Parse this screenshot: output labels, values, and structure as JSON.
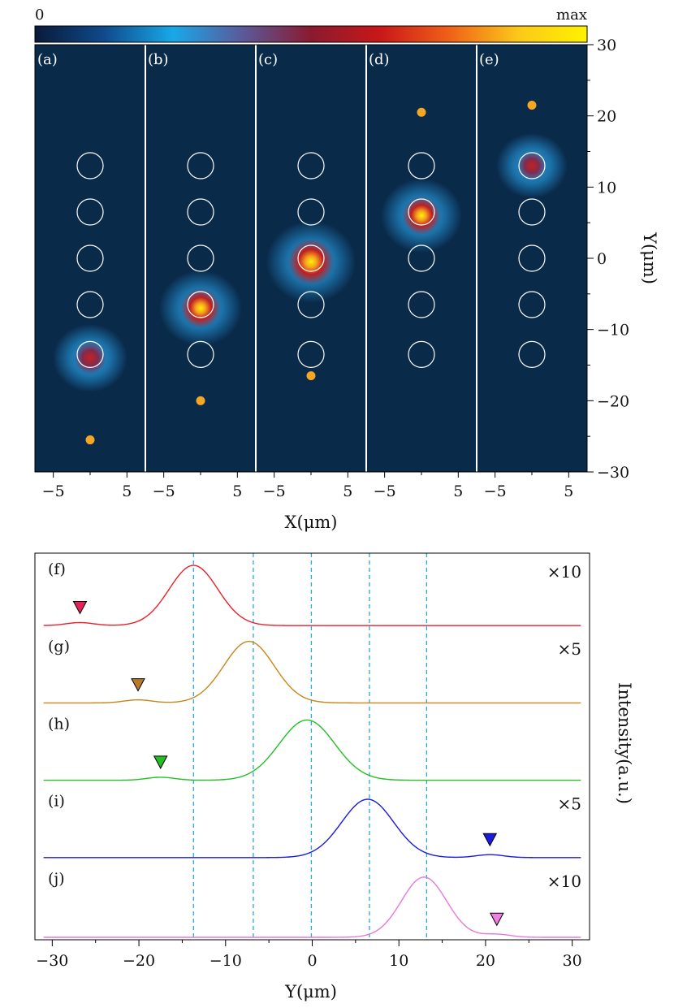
{
  "colorbar": {
    "min_label": "0",
    "max_label": "max",
    "colors": [
      "#0a1a3a",
      "#0f4a8a",
      "#18a8e8",
      "#5a5a9a",
      "#8a1a30",
      "#c81818",
      "#f06018",
      "#fbc81a",
      "#fff200"
    ]
  },
  "panel_colors": {
    "background": "#0a2a4a",
    "glow": "#29a8f0",
    "core": "#c81818",
    "hot": "#fff200",
    "circle_outline": "#ffffff",
    "marker": "#f5a623"
  },
  "chart_data": [
    {
      "type": "heatmap",
      "panels": [
        {
          "label": "(a)",
          "spot_y": -14,
          "spot_intensity": 0.55,
          "marker_y": -25.5
        },
        {
          "label": "(b)",
          "spot_y": -7,
          "spot_intensity": 0.8,
          "marker_y": -20
        },
        {
          "label": "(c)",
          "spot_y": -0.5,
          "spot_intensity": 1.0,
          "marker_y": -16.5
        },
        {
          "label": "(d)",
          "spot_y": 6,
          "spot_intensity": 0.75,
          "marker_y": 20.5
        },
        {
          "label": "(e)",
          "spot_y": 13,
          "spot_intensity": 0.45,
          "marker_y": 21.5
        }
      ],
      "circle_y": [
        13,
        6.5,
        0,
        -6.5,
        -13.5
      ],
      "circle_x": 0,
      "xlabel": "X(μm)",
      "ylabel": "Y(μm)",
      "xlim": [
        -7.5,
        7.5
      ],
      "ylim": [
        -30,
        30
      ],
      "xticks": [
        -5,
        5
      ],
      "yticks": [
        30,
        20,
        10,
        0,
        -10,
        -20,
        -30
      ],
      "ytick_labels": [
        "30",
        "20",
        "10",
        "0",
        "−10",
        "−20",
        "−30"
      ],
      "xtick_labels": [
        "−5",
        "5"
      ]
    },
    {
      "type": "line",
      "xlabel": "Y(μm)",
      "ylabel": "Intensity(a.u.)",
      "xlim": [
        -32,
        32
      ],
      "xticks": [
        -30,
        -20,
        -10,
        0,
        10,
        20,
        30
      ],
      "xtick_labels": [
        "−30",
        "−20",
        "−10",
        "0",
        "10",
        "20",
        "30"
      ],
      "reference_lines_x": [
        -13.7,
        -6.8,
        -0.1,
        6.6,
        13.2
      ],
      "reference_line_color": "#29a8e0",
      "series": [
        {
          "label": "(f)",
          "scale": "×10",
          "color": "#e8202a",
          "peak_x": -13.7,
          "peak_height": 0.95,
          "width": 2.8,
          "marker_x": -26.8,
          "marker_color": "#e8205a"
        },
        {
          "label": "(g)",
          "scale": "×5",
          "color": "#c8861a",
          "peak_x": -7.3,
          "peak_height": 0.97,
          "width": 2.9,
          "marker_x": -20.1,
          "marker_color": "#b87a2a"
        },
        {
          "label": "(h)",
          "scale": "",
          "color": "#22c022",
          "peak_x": -0.6,
          "peak_height": 0.95,
          "width": 3.2,
          "marker_x": -17.5,
          "marker_color": "#22c022"
        },
        {
          "label": "(i)",
          "scale": "×5",
          "color": "#1a1ae0",
          "peak_x": 6.4,
          "peak_height": 0.92,
          "width": 3.0,
          "marker_x": 20.5,
          "marker_color": "#1a1ae0"
        },
        {
          "label": "(j)",
          "scale": "×10",
          "color": "#e878d8",
          "peak_x": 12.9,
          "peak_height": 0.95,
          "width": 2.6,
          "marker_x": 21.3,
          "marker_color": "#f080e0"
        }
      ]
    }
  ]
}
